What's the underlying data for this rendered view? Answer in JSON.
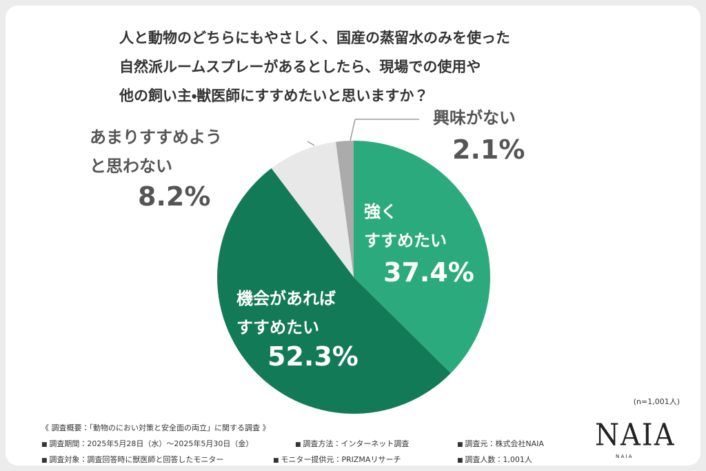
{
  "chart_data": {
    "type": "pie",
    "title": "人と動物のどちらにもやさしく、国産の蒸留水のみを使った\n自然派ルームスプレーがあるとしたら、現場での使用や\n他の飼い主・獣医師にすすめたいと思いますか？",
    "categories": [
      "強く\nすすめたい",
      "機会があれば\nすすめたい",
      "あまりすすめよう\nと思わない",
      "興味がない"
    ],
    "values": [
      37.4,
      52.3,
      8.2,
      2.1
    ],
    "value_labels": [
      "37.4%",
      "52.3%",
      "8.2%",
      "2.1%"
    ],
    "colors": [
      "#2bab7d",
      "#137a58",
      "#e8e8e8",
      "#ababab"
    ],
    "note": "(n=1,001人)"
  },
  "survey": {
    "title": "《 調査概要：「動物のにおい対策と安全面の両立」に関する調査 》",
    "items": [
      "調査期間：2025年5月28日（水）～2025年5月30日（金）",
      "調査方法：インターネット調査",
      "調査元：株式会社NAIA",
      "調査対象：調査回答時に獣医師と回答したモニター",
      "モニター提供元：PRIZMAリサーチ",
      "調査人数：1,001人"
    ]
  },
  "logo": {
    "mark": "NAIA",
    "caption": "N A I A"
  }
}
